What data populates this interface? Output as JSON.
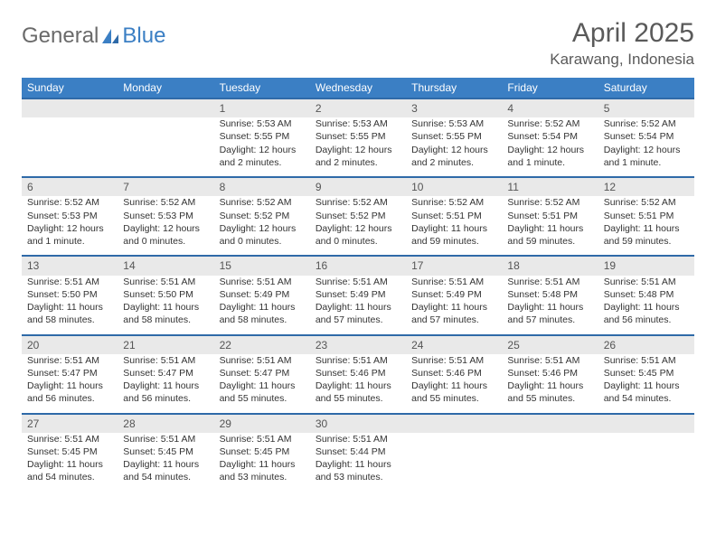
{
  "brand": {
    "part1": "General",
    "part2": "Blue"
  },
  "title": {
    "month": "April 2025",
    "location": "Karawang, Indonesia"
  },
  "colors": {
    "header_bg": "#3b7fc4",
    "header_text": "#ffffff",
    "rule": "#2f6aa8",
    "shade": "#e9e9e9",
    "text": "#333333"
  },
  "weekdays": [
    "Sunday",
    "Monday",
    "Tuesday",
    "Wednesday",
    "Thursday",
    "Friday",
    "Saturday"
  ],
  "weeks": [
    [
      null,
      null,
      {
        "n": "1",
        "sr": "Sunrise: 5:53 AM",
        "ss": "Sunset: 5:55 PM",
        "dl": "Daylight: 12 hours and 2 minutes."
      },
      {
        "n": "2",
        "sr": "Sunrise: 5:53 AM",
        "ss": "Sunset: 5:55 PM",
        "dl": "Daylight: 12 hours and 2 minutes."
      },
      {
        "n": "3",
        "sr": "Sunrise: 5:53 AM",
        "ss": "Sunset: 5:55 PM",
        "dl": "Daylight: 12 hours and 2 minutes."
      },
      {
        "n": "4",
        "sr": "Sunrise: 5:52 AM",
        "ss": "Sunset: 5:54 PM",
        "dl": "Daylight: 12 hours and 1 minute."
      },
      {
        "n": "5",
        "sr": "Sunrise: 5:52 AM",
        "ss": "Sunset: 5:54 PM",
        "dl": "Daylight: 12 hours and 1 minute."
      }
    ],
    [
      {
        "n": "6",
        "sr": "Sunrise: 5:52 AM",
        "ss": "Sunset: 5:53 PM",
        "dl": "Daylight: 12 hours and 1 minute."
      },
      {
        "n": "7",
        "sr": "Sunrise: 5:52 AM",
        "ss": "Sunset: 5:53 PM",
        "dl": "Daylight: 12 hours and 0 minutes."
      },
      {
        "n": "8",
        "sr": "Sunrise: 5:52 AM",
        "ss": "Sunset: 5:52 PM",
        "dl": "Daylight: 12 hours and 0 minutes."
      },
      {
        "n": "9",
        "sr": "Sunrise: 5:52 AM",
        "ss": "Sunset: 5:52 PM",
        "dl": "Daylight: 12 hours and 0 minutes."
      },
      {
        "n": "10",
        "sr": "Sunrise: 5:52 AM",
        "ss": "Sunset: 5:51 PM",
        "dl": "Daylight: 11 hours and 59 minutes."
      },
      {
        "n": "11",
        "sr": "Sunrise: 5:52 AM",
        "ss": "Sunset: 5:51 PM",
        "dl": "Daylight: 11 hours and 59 minutes."
      },
      {
        "n": "12",
        "sr": "Sunrise: 5:52 AM",
        "ss": "Sunset: 5:51 PM",
        "dl": "Daylight: 11 hours and 59 minutes."
      }
    ],
    [
      {
        "n": "13",
        "sr": "Sunrise: 5:51 AM",
        "ss": "Sunset: 5:50 PM",
        "dl": "Daylight: 11 hours and 58 minutes."
      },
      {
        "n": "14",
        "sr": "Sunrise: 5:51 AM",
        "ss": "Sunset: 5:50 PM",
        "dl": "Daylight: 11 hours and 58 minutes."
      },
      {
        "n": "15",
        "sr": "Sunrise: 5:51 AM",
        "ss": "Sunset: 5:49 PM",
        "dl": "Daylight: 11 hours and 58 minutes."
      },
      {
        "n": "16",
        "sr": "Sunrise: 5:51 AM",
        "ss": "Sunset: 5:49 PM",
        "dl": "Daylight: 11 hours and 57 minutes."
      },
      {
        "n": "17",
        "sr": "Sunrise: 5:51 AM",
        "ss": "Sunset: 5:49 PM",
        "dl": "Daylight: 11 hours and 57 minutes."
      },
      {
        "n": "18",
        "sr": "Sunrise: 5:51 AM",
        "ss": "Sunset: 5:48 PM",
        "dl": "Daylight: 11 hours and 57 minutes."
      },
      {
        "n": "19",
        "sr": "Sunrise: 5:51 AM",
        "ss": "Sunset: 5:48 PM",
        "dl": "Daylight: 11 hours and 56 minutes."
      }
    ],
    [
      {
        "n": "20",
        "sr": "Sunrise: 5:51 AM",
        "ss": "Sunset: 5:47 PM",
        "dl": "Daylight: 11 hours and 56 minutes."
      },
      {
        "n": "21",
        "sr": "Sunrise: 5:51 AM",
        "ss": "Sunset: 5:47 PM",
        "dl": "Daylight: 11 hours and 56 minutes."
      },
      {
        "n": "22",
        "sr": "Sunrise: 5:51 AM",
        "ss": "Sunset: 5:47 PM",
        "dl": "Daylight: 11 hours and 55 minutes."
      },
      {
        "n": "23",
        "sr": "Sunrise: 5:51 AM",
        "ss": "Sunset: 5:46 PM",
        "dl": "Daylight: 11 hours and 55 minutes."
      },
      {
        "n": "24",
        "sr": "Sunrise: 5:51 AM",
        "ss": "Sunset: 5:46 PM",
        "dl": "Daylight: 11 hours and 55 minutes."
      },
      {
        "n": "25",
        "sr": "Sunrise: 5:51 AM",
        "ss": "Sunset: 5:46 PM",
        "dl": "Daylight: 11 hours and 55 minutes."
      },
      {
        "n": "26",
        "sr": "Sunrise: 5:51 AM",
        "ss": "Sunset: 5:45 PM",
        "dl": "Daylight: 11 hours and 54 minutes."
      }
    ],
    [
      {
        "n": "27",
        "sr": "Sunrise: 5:51 AM",
        "ss": "Sunset: 5:45 PM",
        "dl": "Daylight: 11 hours and 54 minutes."
      },
      {
        "n": "28",
        "sr": "Sunrise: 5:51 AM",
        "ss": "Sunset: 5:45 PM",
        "dl": "Daylight: 11 hours and 54 minutes."
      },
      {
        "n": "29",
        "sr": "Sunrise: 5:51 AM",
        "ss": "Sunset: 5:45 PM",
        "dl": "Daylight: 11 hours and 53 minutes."
      },
      {
        "n": "30",
        "sr": "Sunrise: 5:51 AM",
        "ss": "Sunset: 5:44 PM",
        "dl": "Daylight: 11 hours and 53 minutes."
      },
      null,
      null,
      null
    ]
  ]
}
